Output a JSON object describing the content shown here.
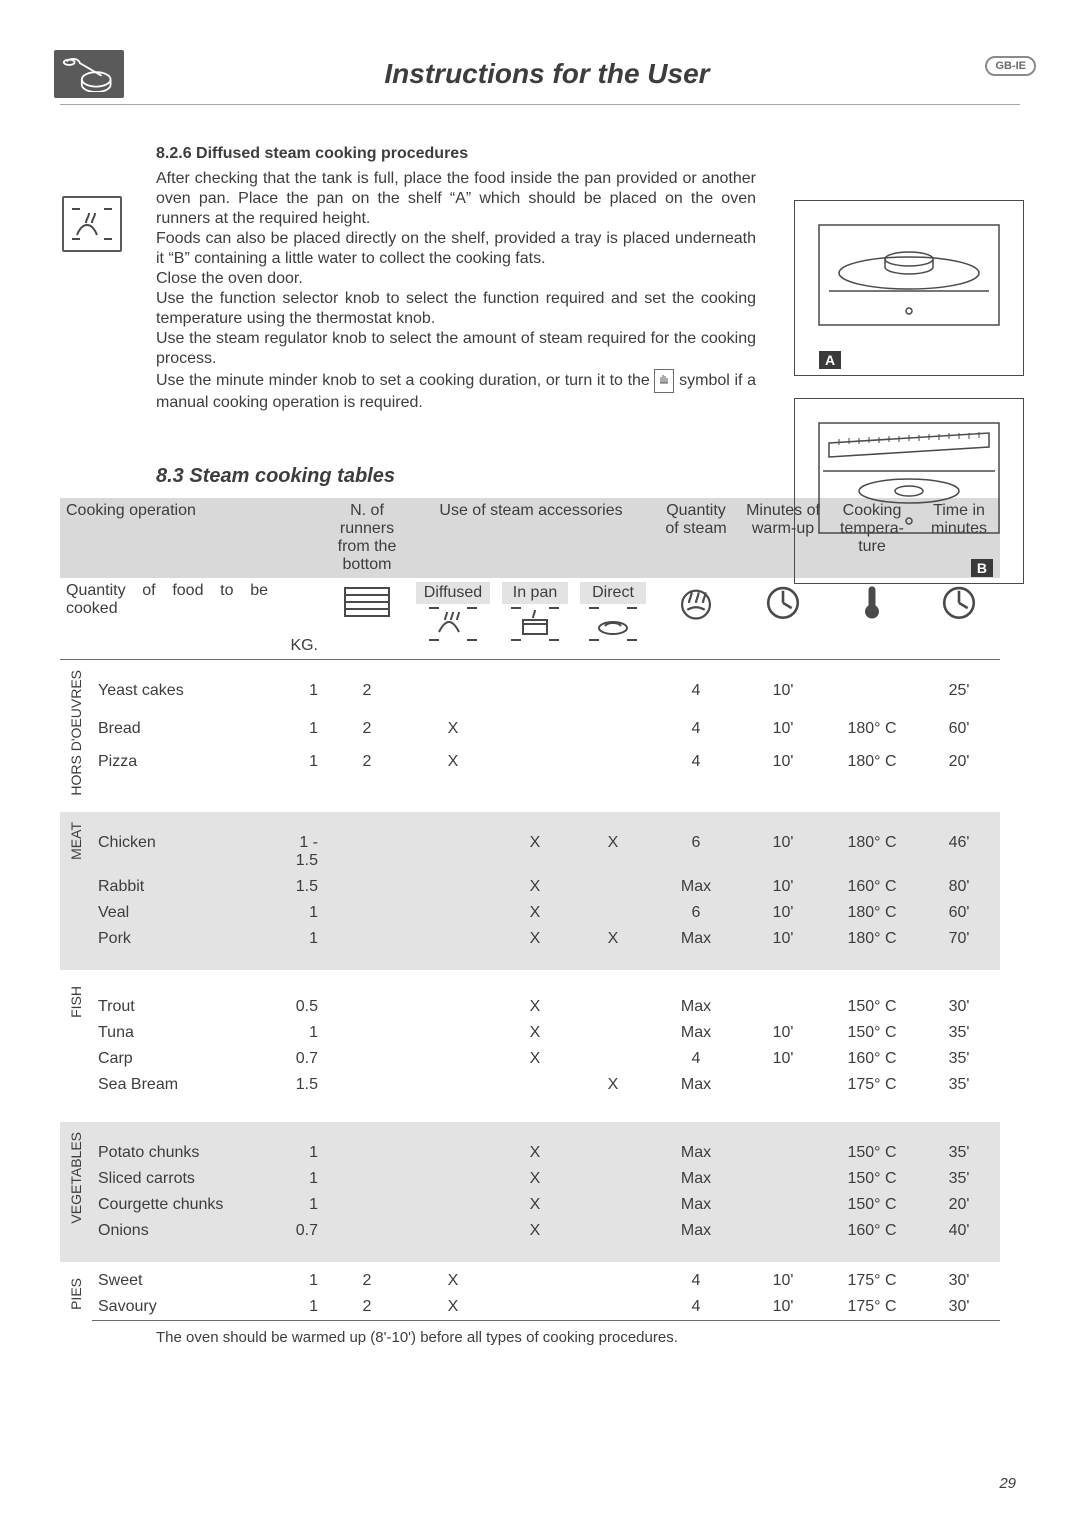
{
  "badge": "GB-IE",
  "page_title": "Instructions for the User",
  "section_826": {
    "heading": "8.2.6  Diffused steam cooking procedures",
    "p1": "After checking that the tank is full, place the food inside the pan provided or another oven pan. Place the pan on the shelf “A” which should be placed on the oven runners at the required height.",
    "p2": "Foods can also be placed directly on the shelf, provided a tray is placed underneath it “B” containing a little water to collect the cooking fats.",
    "p3": "Close the oven door.",
    "p4": "Use the function selector knob to select the function required and set the cooking temperature using the thermostat knob.",
    "p5": "Use the steam regulator knob to select the amount of steam required for the cooking process.",
    "p6a": "Use the minute minder knob to set a cooking duration, or turn it to the ",
    "p6b": " symbol if a manual cooking operation is required."
  },
  "figA_label": "A",
  "figB_label": "B",
  "section_83_title": "8.3   Steam cooking tables",
  "headers": {
    "op": "Cooking operation",
    "runners": "N. of runners from the bottom",
    "acc": "Use of steam accessories",
    "qty_steam": "Quantity of steam",
    "warmup": "Minutes of warm-up",
    "temp": "Cooking tempera-ture",
    "time": "Time in minutes",
    "qty_food": "Quantity of food to be cooked",
    "kg": "KG.",
    "diffused": "Diffused",
    "inpan": "In pan",
    "direct": "Direct"
  },
  "cats": {
    "hors": "HORS D'OEUVRES",
    "meat": "MEAT",
    "fish": "FISH",
    "veg": "VEGETABLES",
    "pies": "PIES"
  },
  "rows": {
    "hors": [
      {
        "name": "Yeast cakes",
        "kg": "1",
        "run": "2",
        "diff": "",
        "pan": "",
        "dir": "",
        "qs": "4",
        "wu": "10'",
        "temp": "",
        "time": "25'"
      },
      {
        "name": "Bread",
        "kg": "1",
        "run": "2",
        "diff": "X",
        "pan": "",
        "dir": "",
        "qs": "4",
        "wu": "10'",
        "temp": "180° C",
        "time": "60'"
      },
      {
        "name": "Pizza",
        "kg": "1",
        "run": "2",
        "diff": "X",
        "pan": "",
        "dir": "",
        "qs": "4",
        "wu": "10'",
        "temp": "180° C",
        "time": "20'"
      }
    ],
    "meat": [
      {
        "name": "Chicken",
        "kg": "1 - 1.5",
        "run": "",
        "diff": "",
        "pan": "X",
        "dir": "X",
        "qs": "6",
        "wu": "10'",
        "temp": "180° C",
        "time": "46'"
      },
      {
        "name": "Rabbit",
        "kg": "1.5",
        "run": "",
        "diff": "",
        "pan": "X",
        "dir": "",
        "qs": "Max",
        "wu": "10'",
        "temp": "160° C",
        "time": "80'"
      },
      {
        "name": "Veal",
        "kg": "1",
        "run": "",
        "diff": "",
        "pan": "X",
        "dir": "",
        "qs": "6",
        "wu": "10'",
        "temp": "180° C",
        "time": "60'"
      },
      {
        "name": "Pork",
        "kg": "1",
        "run": "",
        "diff": "",
        "pan": "X",
        "dir": "X",
        "qs": "Max",
        "wu": "10'",
        "temp": "180° C",
        "time": "70'"
      }
    ],
    "fish": [
      {
        "name": "Trout",
        "kg": "0.5",
        "run": "",
        "diff": "",
        "pan": "X",
        "dir": "",
        "qs": "Max",
        "wu": "",
        "temp": "150° C",
        "time": "30'"
      },
      {
        "name": "Tuna",
        "kg": "1",
        "run": "",
        "diff": "",
        "pan": "X",
        "dir": "",
        "qs": "Max",
        "wu": "10'",
        "temp": "150° C",
        "time": "35'"
      },
      {
        "name": "Carp",
        "kg": "0.7",
        "run": "",
        "diff": "",
        "pan": "X",
        "dir": "",
        "qs": "4",
        "wu": "10'",
        "temp": "160° C",
        "time": "35'"
      },
      {
        "name": "Sea Bream",
        "kg": "1.5",
        "run": "",
        "diff": "",
        "pan": "",
        "dir": "X",
        "qs": "Max",
        "wu": "",
        "temp": "175° C",
        "time": "35'"
      }
    ],
    "veg": [
      {
        "name": "Potato chunks",
        "kg": "1",
        "run": "",
        "diff": "",
        "pan": "X",
        "dir": "",
        "qs": "Max",
        "wu": "",
        "temp": "150° C",
        "time": "35'"
      },
      {
        "name": "Sliced carrots",
        "kg": "1",
        "run": "",
        "diff": "",
        "pan": "X",
        "dir": "",
        "qs": "Max",
        "wu": "",
        "temp": "150° C",
        "time": "35'"
      },
      {
        "name": "Courgette chunks",
        "kg": "1",
        "run": "",
        "diff": "",
        "pan": "X",
        "dir": "",
        "qs": "Max",
        "wu": "",
        "temp": "150° C",
        "time": "20'"
      },
      {
        "name": "Onions",
        "kg": "0.7",
        "run": "",
        "diff": "",
        "pan": "X",
        "dir": "",
        "qs": "Max",
        "wu": "",
        "temp": "160° C",
        "time": "40'"
      }
    ],
    "pies": [
      {
        "name": "Sweet",
        "kg": "1",
        "run": "2",
        "diff": "X",
        "pan": "",
        "dir": "",
        "qs": "4",
        "wu": "10'",
        "temp": "175° C",
        "time": "30'"
      },
      {
        "name": "Savoury",
        "kg": "1",
        "run": "2",
        "diff": "X",
        "pan": "",
        "dir": "",
        "qs": "4",
        "wu": "10'",
        "temp": "175° C",
        "time": "30'"
      }
    ]
  },
  "footnote": "The oven should be warmed up (8'-10') before all types of cooking procedures.",
  "page_number": "29"
}
